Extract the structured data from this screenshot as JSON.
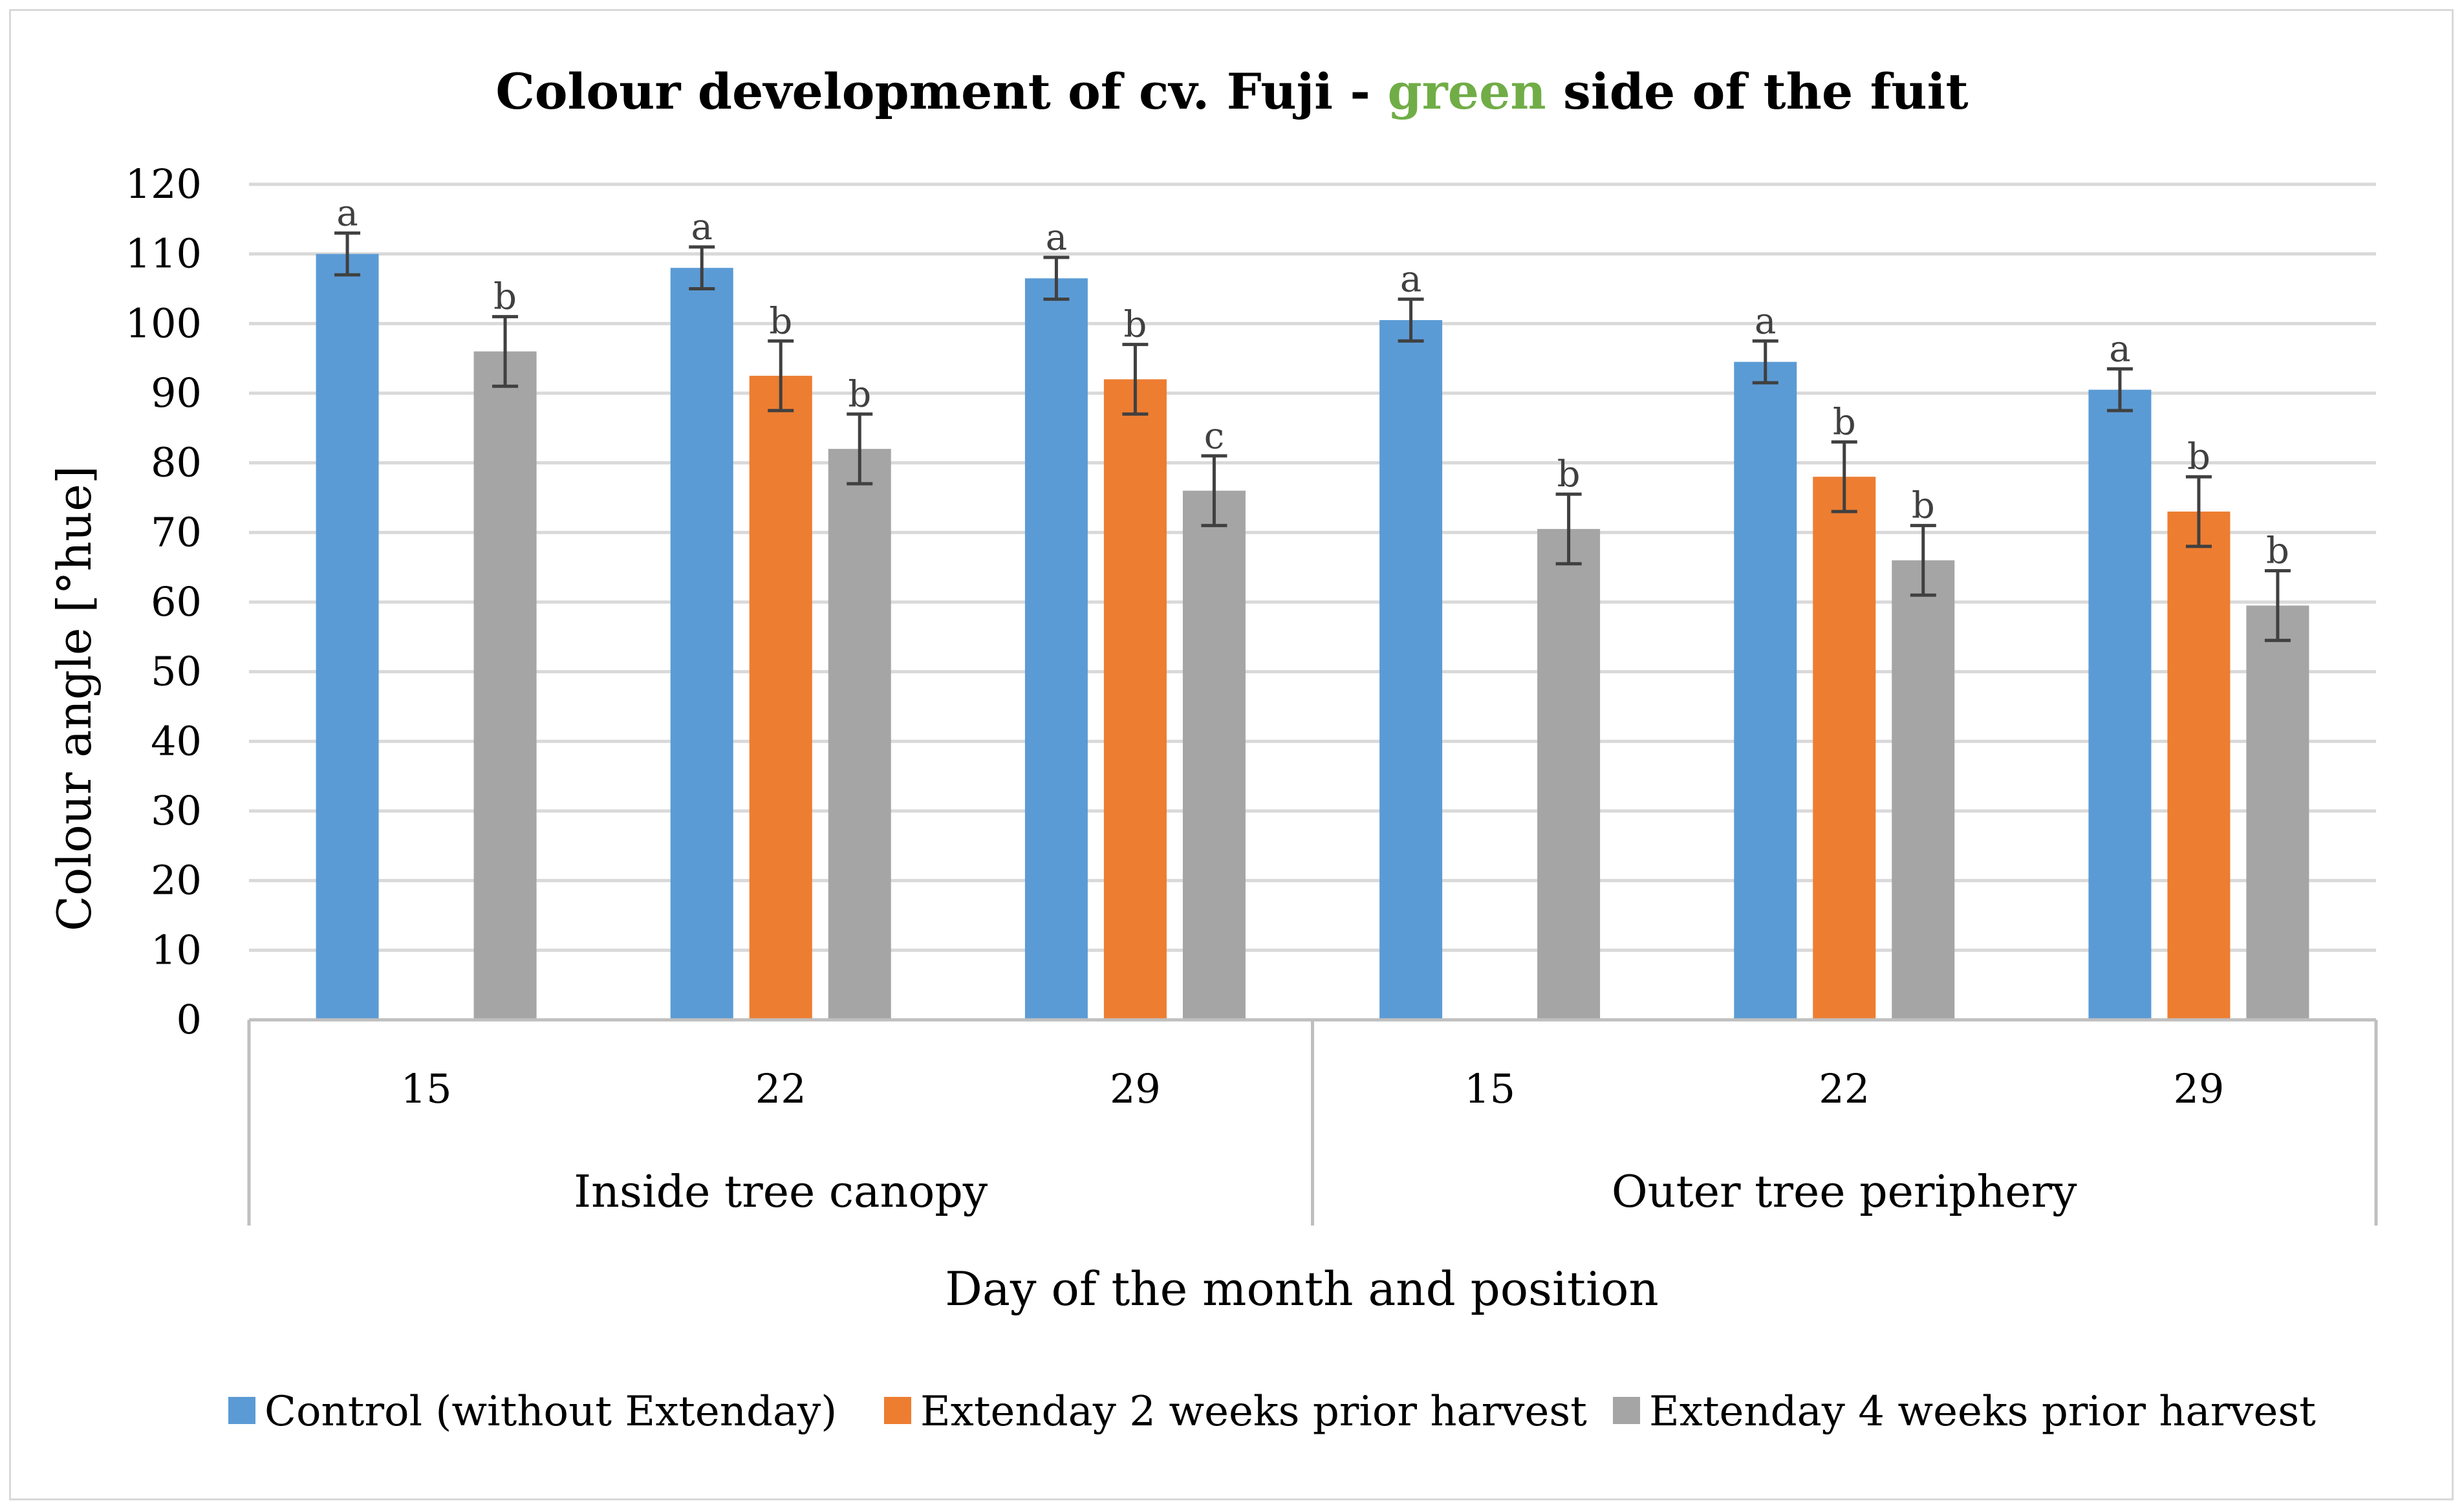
{
  "chart_data": {
    "type": "bar",
    "title_parts": [
      "Colour development of cv. Fuji - ",
      "green",
      " side of the fuit"
    ],
    "ylabel": "Colour angle [°hue]",
    "xlabel": "Day of the month and position",
    "ylim": [
      0,
      120
    ],
    "yticks": [
      0,
      10,
      20,
      30,
      40,
      50,
      60,
      70,
      80,
      90,
      100,
      110,
      120
    ],
    "groups": [
      {
        "label": "Inside tree canopy",
        "categories": [
          "15",
          "22",
          "29"
        ]
      },
      {
        "label": "Outer tree periphery",
        "categories": [
          "15",
          "22",
          "29"
        ]
      }
    ],
    "categories": [
      "15",
      "22",
      "29",
      "15",
      "22",
      "29"
    ],
    "series": [
      {
        "name": "Control (without Extenday)",
        "color": "#5b9bd5",
        "values": [
          110,
          108,
          106.5,
          100.5,
          94.5,
          90.5
        ],
        "errors": [
          3,
          3,
          3,
          3,
          3,
          3
        ],
        "labels": [
          "a",
          "a",
          "a",
          "a",
          "a",
          "a"
        ]
      },
      {
        "name": "Extenday 2 weeks prior harvest",
        "color": "#ed7d31",
        "values": [
          null,
          92.5,
          92,
          null,
          78,
          73
        ],
        "errors": [
          null,
          5,
          5,
          null,
          5,
          5
        ],
        "labels": [
          null,
          "b",
          "b",
          null,
          "b",
          "b"
        ]
      },
      {
        "name": "Extenday 4 weeks prior harvest",
        "color": "#a5a5a5",
        "values": [
          96,
          82,
          76,
          70.5,
          66,
          59.5
        ],
        "errors": [
          5,
          5,
          5,
          5,
          5,
          5
        ],
        "labels": [
          "b",
          "b",
          "c",
          "b",
          "b",
          "b"
        ]
      }
    ],
    "colors": {
      "title_accent": "#70ad47",
      "grid": "#d9d9d9",
      "axis": "#bfbfbf",
      "error_bar": "#404040"
    }
  }
}
